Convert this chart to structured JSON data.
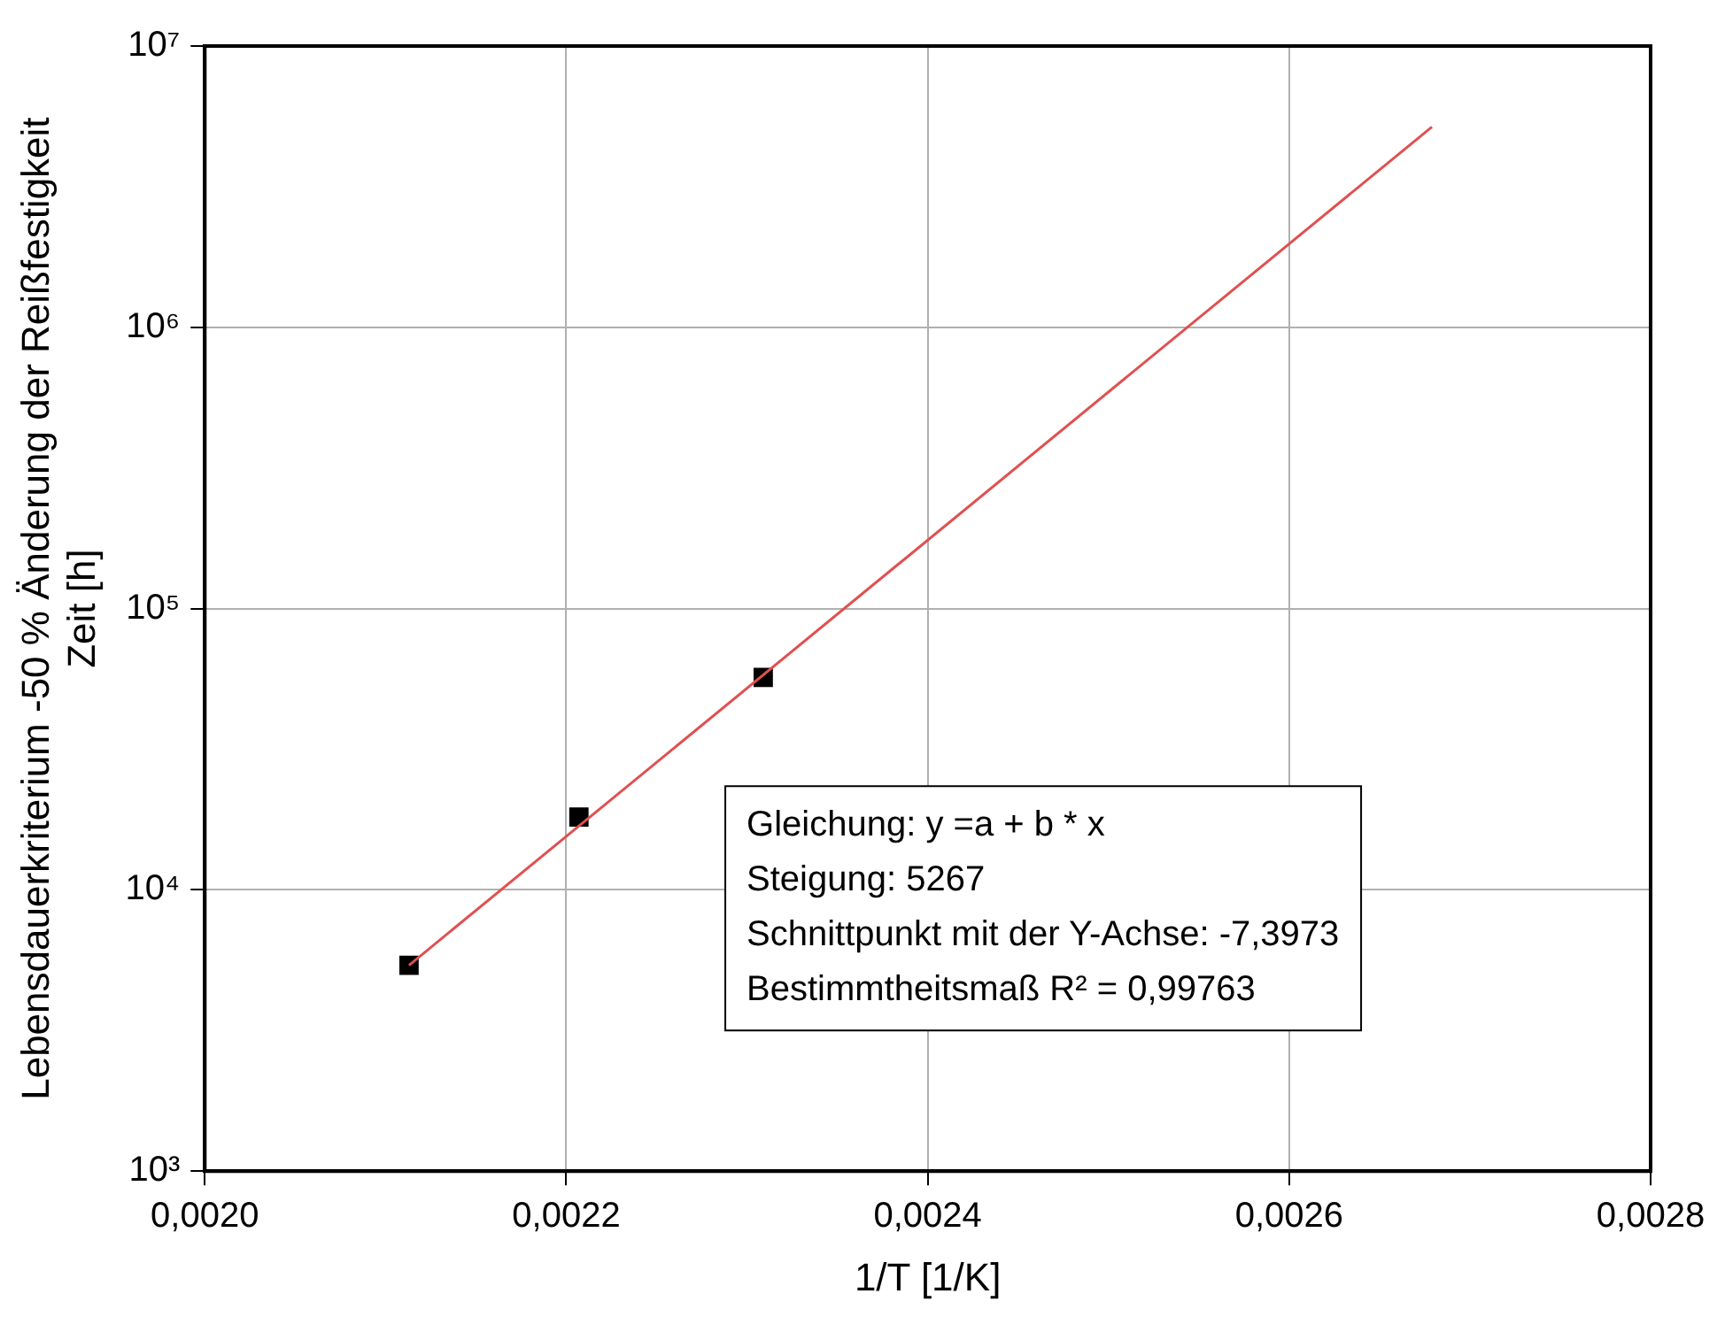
{
  "chart_data": {
    "type": "scatter",
    "xlabel": "1/T [1/K]",
    "ylabel": "Lebensdauerkriterium -50 % Änderung der Reißfestigkeit\nZeit [h]",
    "series": [
      {
        "color": "#000000",
        "marker": "square",
        "x": [
          0.002113,
          0.002207,
          0.002309
        ],
        "values": [
          5390,
          18150,
          56900
        ]
      },
      {
        "type": "line",
        "color": "#e05050",
        "marker": "none",
        "x": [
          0.002113,
          0.002679
        ],
        "values": [
          5395,
          5160000
        ]
      }
    ],
    "log": "y",
    "xlim": [
      0.002,
      0.0028
    ],
    "ylim": [
      1000,
      10000000
    ],
    "xticks": [
      {
        "value": 0.002,
        "label": "0,0020"
      },
      {
        "value": 0.0022,
        "label": "0,0022"
      },
      {
        "value": 0.0024,
        "label": "0,0024"
      },
      {
        "value": 0.0026,
        "label": "0,0026"
      },
      {
        "value": 0.0028,
        "label": "0,0028"
      }
    ],
    "yticks": [
      {
        "value": 1000,
        "label": "10³"
      },
      {
        "value": 10000,
        "label": "10⁴"
      },
      {
        "value": 100000,
        "label": "10⁵"
      },
      {
        "value": 1000000,
        "label": "10⁶"
      },
      {
        "value": 10000000,
        "label": "10⁷"
      }
    ],
    "grid": true,
    "legend": false,
    "annotations": [
      "Gleichung: y =a + b * x",
      "Steigung: 5267",
      "Schnittpunkt mit der Y-Achse: -7,3973",
      "Bestimmtheitsmaß R² = 0,99763"
    ]
  }
}
